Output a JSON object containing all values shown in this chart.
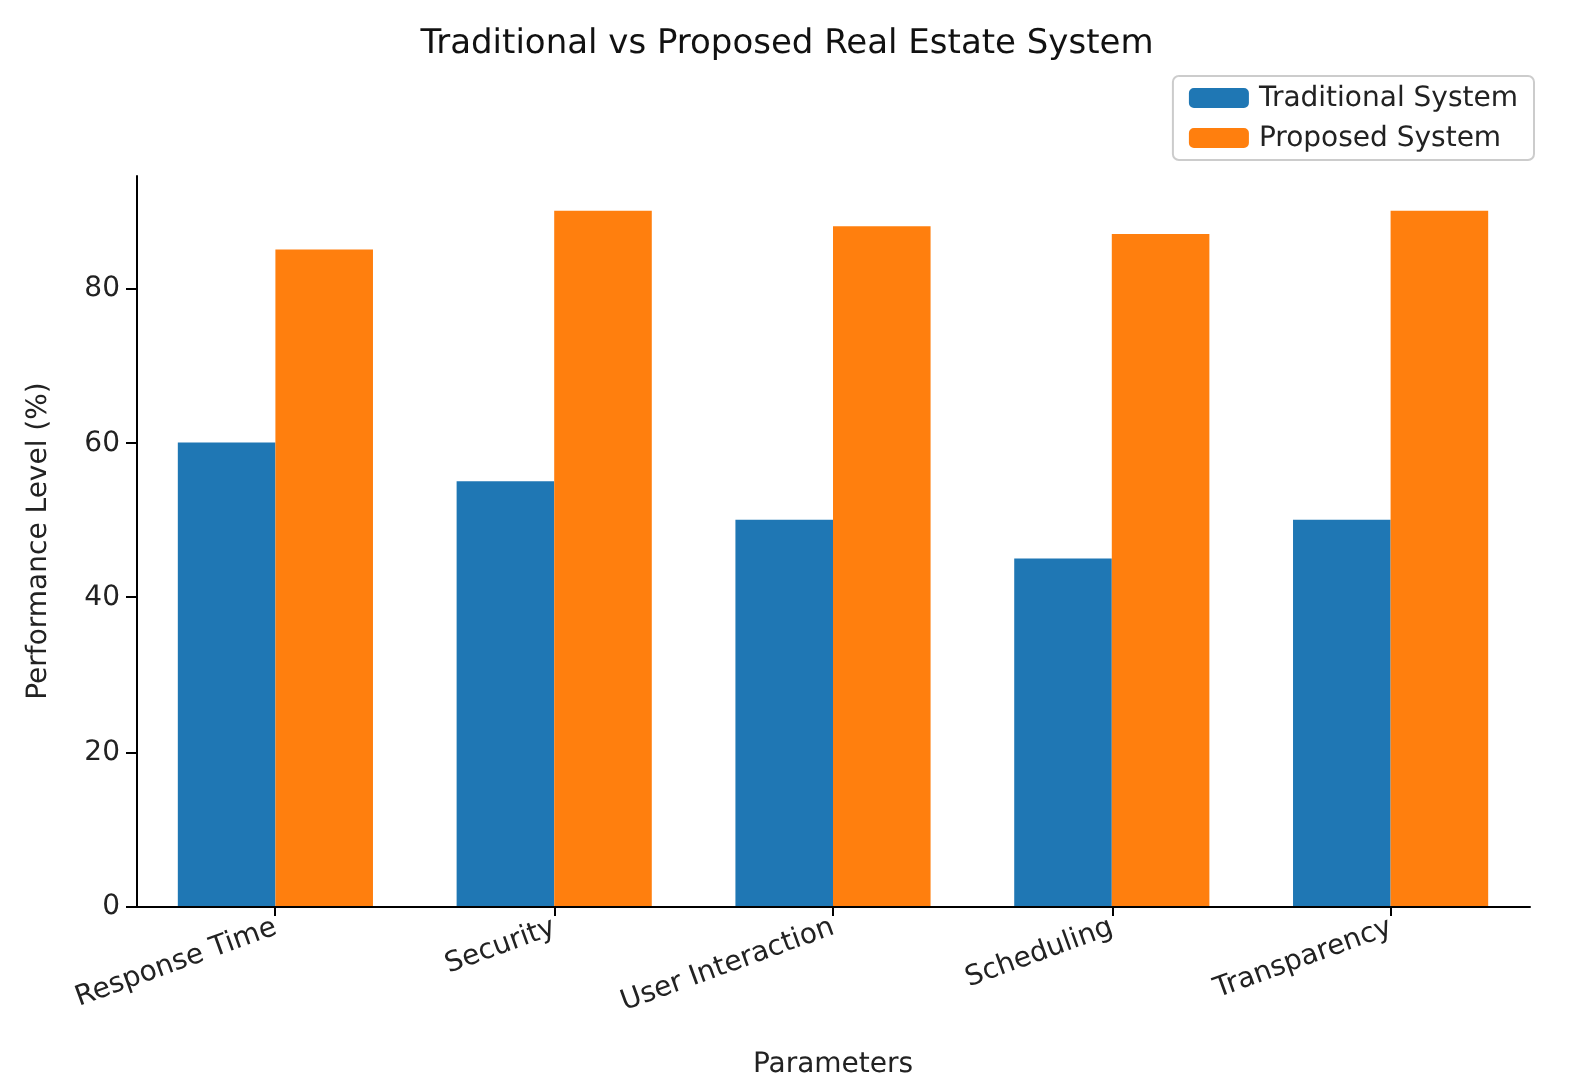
{
  "chart_data": {
    "type": "bar",
    "title": "Traditional vs Proposed Real Estate System",
    "xlabel": "Parameters",
    "ylabel": "Performance Level (%)",
    "categories": [
      "Response Time",
      "Security",
      "User Interaction",
      "Scheduling",
      "Transparency"
    ],
    "series": [
      {
        "name": "Traditional System",
        "color": "#1f77b4",
        "values": [
          60,
          55,
          50,
          45,
          50
        ]
      },
      {
        "name": "Proposed System",
        "color": "#ff7f0e",
        "values": [
          85,
          90,
          88,
          87,
          90
        ]
      }
    ],
    "ylim": [
      0,
      94.5
    ],
    "yticks": [
      0,
      20,
      40,
      60,
      80
    ],
    "grid": false,
    "legend": "top right"
  }
}
